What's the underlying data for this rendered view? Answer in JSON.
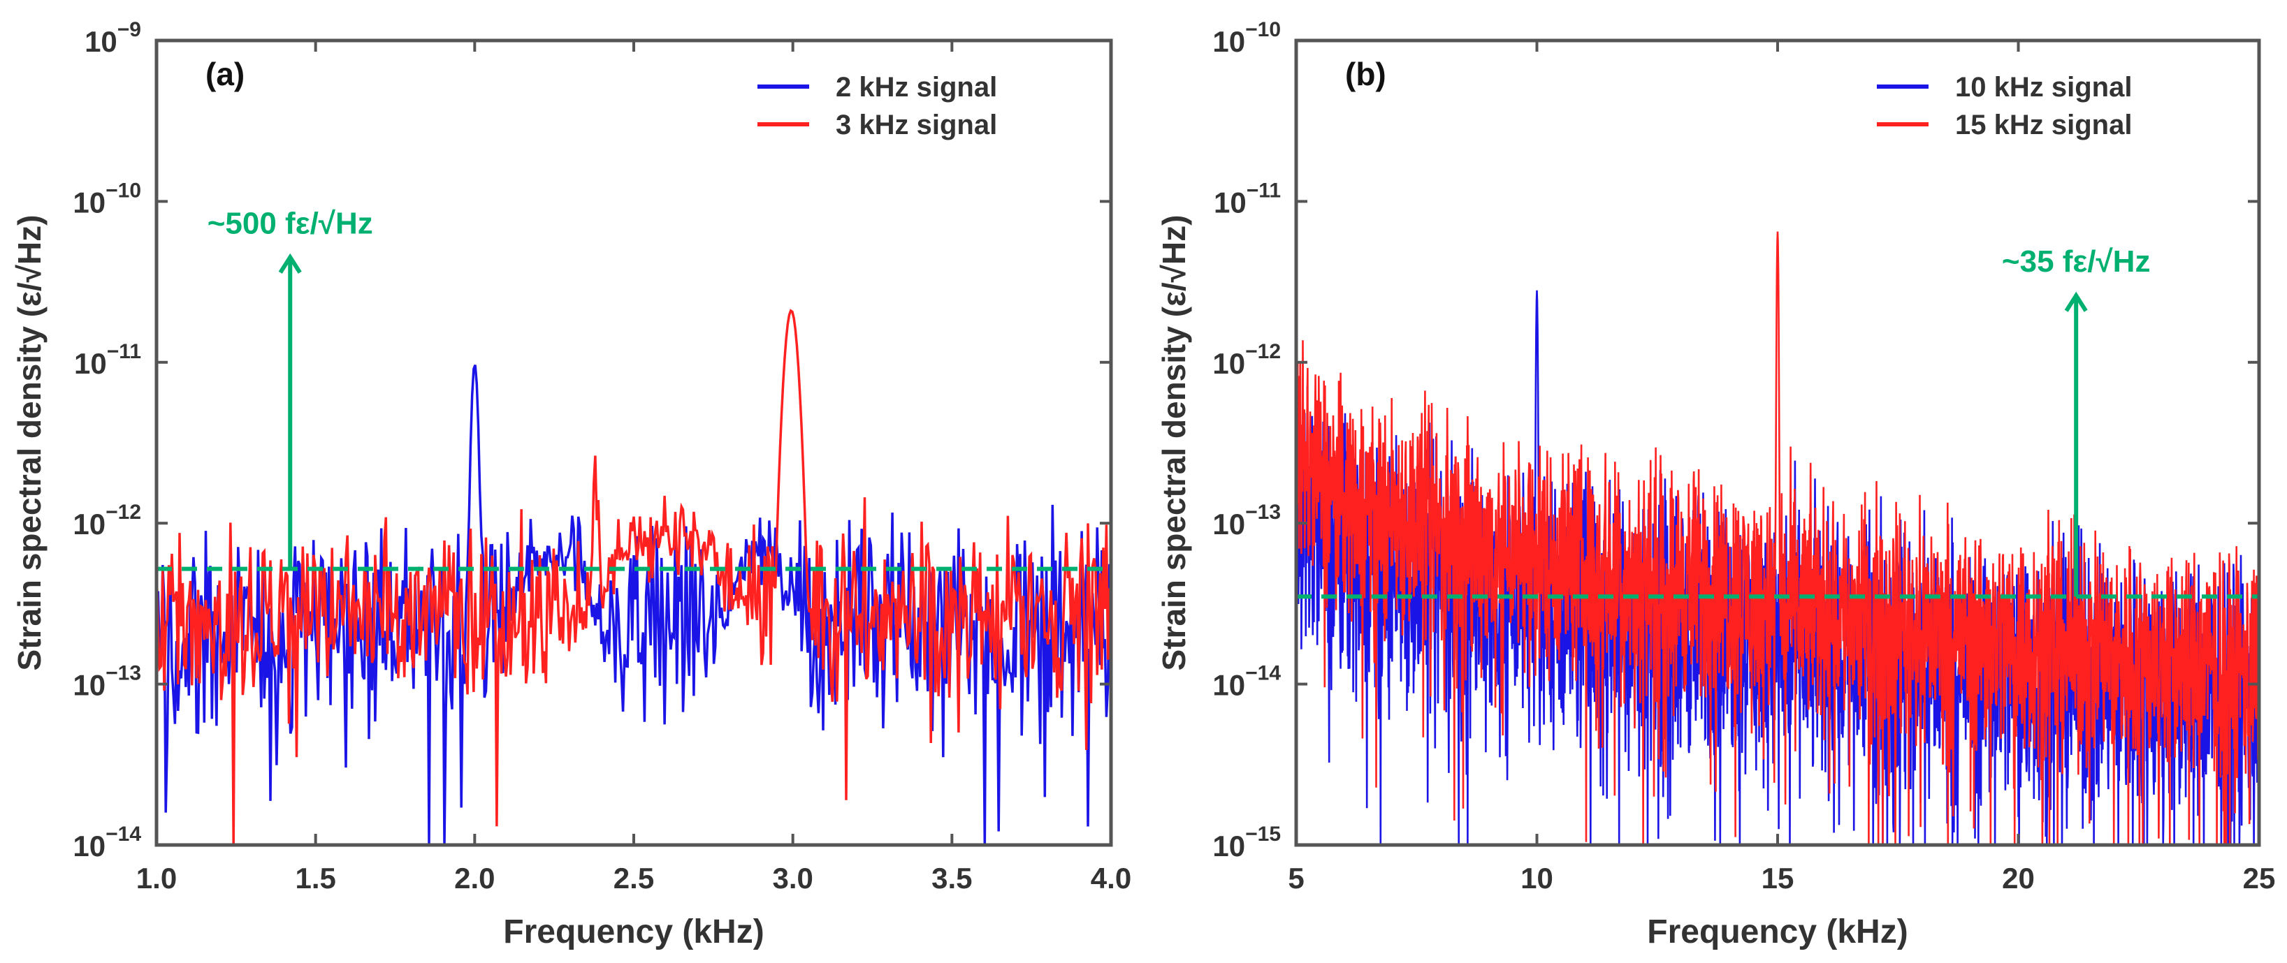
{
  "colors": {
    "blue": "#1a14e6",
    "red": "#ff2020",
    "green": "#00b070",
    "axis": "#555555",
    "text": "#333333"
  },
  "chart_data": [
    {
      "panel_label": "(a)",
      "type": "line",
      "yscale": "log",
      "xlim": [
        1.0,
        4.0
      ],
      "ylim": [
        1e-14,
        1e-09
      ],
      "xticks": [
        "1.0",
        "1.5",
        "2.0",
        "2.5",
        "3.0",
        "3.5",
        "4.0"
      ],
      "xtick_values": [
        1.0,
        1.5,
        2.0,
        2.5,
        3.0,
        3.5,
        4.0
      ],
      "ytick_exponents": [
        -14,
        -13,
        -12,
        -11,
        -10,
        -9
      ],
      "ytick_base": "10",
      "xlabel": "Frequency (kHz)",
      "ylabel": "Strain spectral density (ε/√Hz)",
      "legend_position": "top-right",
      "threshold": {
        "value": 5.2e-13,
        "label": "~500 fε/√Hz",
        "arrow_x": 1.42,
        "arrow_from": 5.2e-13,
        "arrow_to": 4.5e-11
      },
      "series": [
        {
          "name": "2 kHz signal",
          "color": "blue",
          "noise_level": 2.2e-13,
          "noise_spread": 0.55,
          "peak": {
            "x": 2.0,
            "y": 9.8e-12,
            "width": 0.012
          },
          "bumps": [
            {
              "x": 2.25,
              "y": 6e-13,
              "width": 0.15
            },
            {
              "x": 2.9,
              "y": 6.5e-13,
              "width": 0.12
            }
          ]
        },
        {
          "name": "3 kHz signal",
          "color": "red",
          "noise_level": 2.8e-13,
          "noise_spread": 0.45,
          "peak": {
            "x": 2.995,
            "y": 2.1e-11,
            "width": 0.025
          },
          "bumps": [
            {
              "x": 2.38,
              "y": 2.3e-12,
              "width": 0.01
            },
            {
              "x": 2.6,
              "y": 8e-13,
              "width": 0.25
            }
          ]
        }
      ]
    },
    {
      "panel_label": "(b)",
      "type": "line",
      "yscale": "log",
      "xlim": [
        5,
        25
      ],
      "ylim": [
        1e-15,
        1e-10
      ],
      "xticks": [
        "5",
        "10",
        "15",
        "20",
        "25"
      ],
      "xtick_values": [
        5,
        10,
        15,
        20,
        25
      ],
      "ytick_exponents": [
        -15,
        -14,
        -13,
        -12,
        -11,
        -10
      ],
      "ytick_base": "10",
      "xlabel": "Frequency (kHz)",
      "ylabel": "Strain spectral density (ε/√Hz)",
      "legend_position": "top-right",
      "threshold": {
        "value": 3.5e-14,
        "label": "~35 fε/√Hz",
        "arrow_x": 21.2,
        "arrow_from": 3.5e-14,
        "arrow_to": 2.6e-12
      },
      "series": [
        {
          "name": "10 kHz signal",
          "color": "blue",
          "noise_start": 1.1e-13,
          "noise_end": 8e-15,
          "noise_spread": 0.7,
          "peak": {
            "x": 10.0,
            "y": 2.8e-12,
            "width": 0.02
          }
        },
        {
          "name": "15 kHz signal",
          "color": "red",
          "noise_start": 2.8e-13,
          "noise_end": 1.2e-14,
          "noise_spread": 0.6,
          "peak": {
            "x": 15.0,
            "y": 6.5e-12,
            "width": 0.02
          }
        }
      ]
    }
  ]
}
